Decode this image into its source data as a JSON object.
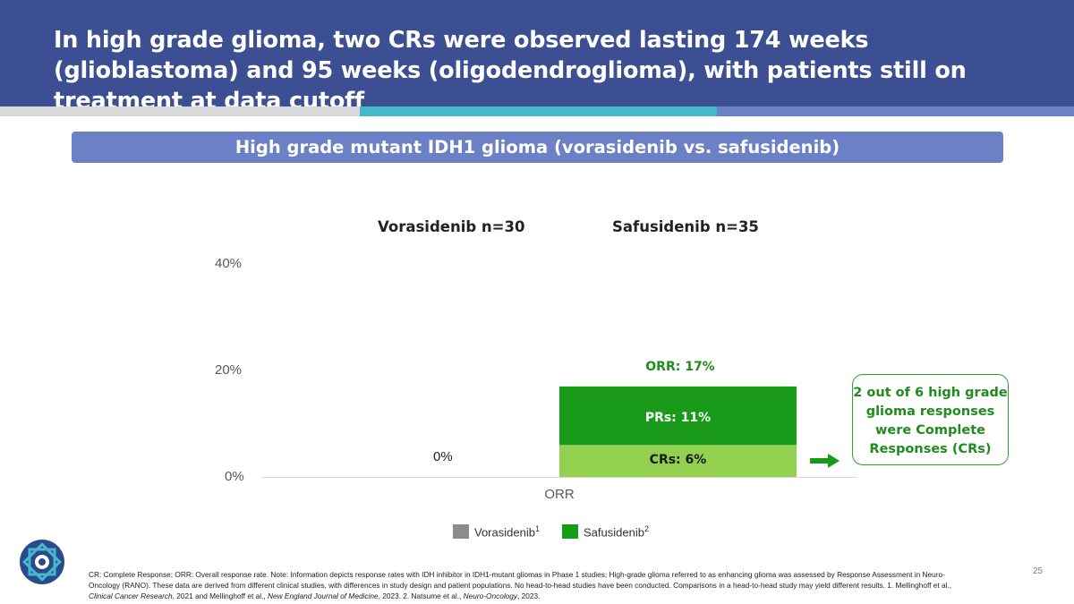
{
  "slide": {
    "title": "In high grade glioma, two CRs were observed lasting 174 weeks (glioblastoma) and 95 weeks (oligodendroglioma), with patients still on treatment at data cutoff",
    "subheader": "High grade mutant IDH1 glioma (vorasidenib vs. safusidenib)",
    "column_heads": [
      "Vorasidenib n=30",
      "Safusidenib n=35"
    ],
    "page_number": "25",
    "callout": "2 out of 6 high grade glioma responses were Complete Responses (CRs)",
    "footnote": {
      "p1": "CR: Complete Response; ORR: Overall response rate. Note: Information depicts response rates with IDH inhibitor in IDH1-mutant gliomas in Phase 1 studies; High-grade glioma referred to as enhancing glioma was assessed by Response Assessment in Neuro-Oncology (RANO). These data are derived from different clinical studies, with differences in study design and patient populations. No head-to-head studies have been conducted. Comparisons in a head-to-head study may yield different results. 1. Mellinghoff et al., ",
      "j1": "Clinical Cancer Research",
      "p2": ", 2021 and Mellinghoff et al., ",
      "j2": "New England Journal of Medicine",
      "p3": ", 2023. 2. Natsume et al., ",
      "j3": "Neuro-Oncology",
      "p4": ", 2023."
    }
  },
  "chart_data": {
    "type": "bar",
    "stacked": true,
    "categories": [
      "ORR"
    ],
    "ylim": [
      0,
      40
    ],
    "yticks": [
      "0%",
      "20%",
      "40%"
    ],
    "grid": false,
    "legend_position": "bottom",
    "legend": [
      {
        "label": "Vorasidenib",
        "sup": "1",
        "color": "#8c8c8c"
      },
      {
        "label": "Safusidenib",
        "sup": "2",
        "color": "#1a9a1a"
      }
    ],
    "series": [
      {
        "name": "Vorasidenib",
        "values": [
          0
        ],
        "label": "0%"
      },
      {
        "name": "Safusidenib",
        "total": 17,
        "total_label": "ORR: 17%",
        "segments": [
          {
            "label": "CRs: 6%",
            "value": 6,
            "color": "#92d050"
          },
          {
            "label": "PRs: 11%",
            "value": 11,
            "color": "#1a9a1a"
          }
        ]
      }
    ]
  }
}
